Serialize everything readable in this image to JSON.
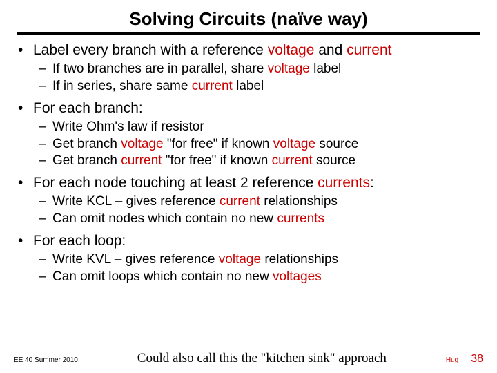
{
  "title": "Solving Circuits (naïve way)",
  "bullets": {
    "b1": "Label every branch with a reference ",
    "b1_voltage": "voltage",
    "b1_mid": " and ",
    "b1_current": "current",
    "b1_s1a": "If two branches are in parallel, share ",
    "b1_s1_voltage": "voltage",
    "b1_s1b": " label",
    "b1_s2a": "If in series, share same ",
    "b1_s2_current": "current",
    "b1_s2b": " label",
    "b2": "For each branch:",
    "b2_s1": "Write Ohm's law if resistor",
    "b2_s2a": "Get branch ",
    "b2_s2_voltage": "voltage",
    "b2_s2b": " \"for free\" if known ",
    "b2_s2_voltage2": "voltage",
    "b2_s2c": " source",
    "b2_s3a": "Get branch ",
    "b2_s3_current": "current",
    "b2_s3b": " \"for free\" if known ",
    "b2_s3_current2": "current",
    "b2_s3c": " source",
    "b3a": "For each node touching at least 2 reference ",
    "b3_currents": "currents",
    "b3b": ":",
    "b3_s1a": "Write KCL – gives reference ",
    "b3_s1_current": "current",
    "b3_s1b": " relationships",
    "b3_s2a": "Can omit nodes which contain no new ",
    "b3_s2_currents": "currents",
    "b4": "For each loop:",
    "b4_s1a": "Write KVL – gives reference ",
    "b4_s1_voltage": "voltage",
    "b4_s1b": " relationships",
    "b4_s2a": "Can omit loops which contain no new ",
    "b4_s2_voltages": "voltages"
  },
  "footer": {
    "left": "EE 40 Summer 2010",
    "center": "Could also call this the \"kitchen sink\" approach",
    "hug": "Hug",
    "page": "38"
  },
  "colors": {
    "accent": "#cc0000",
    "text": "#000000"
  }
}
